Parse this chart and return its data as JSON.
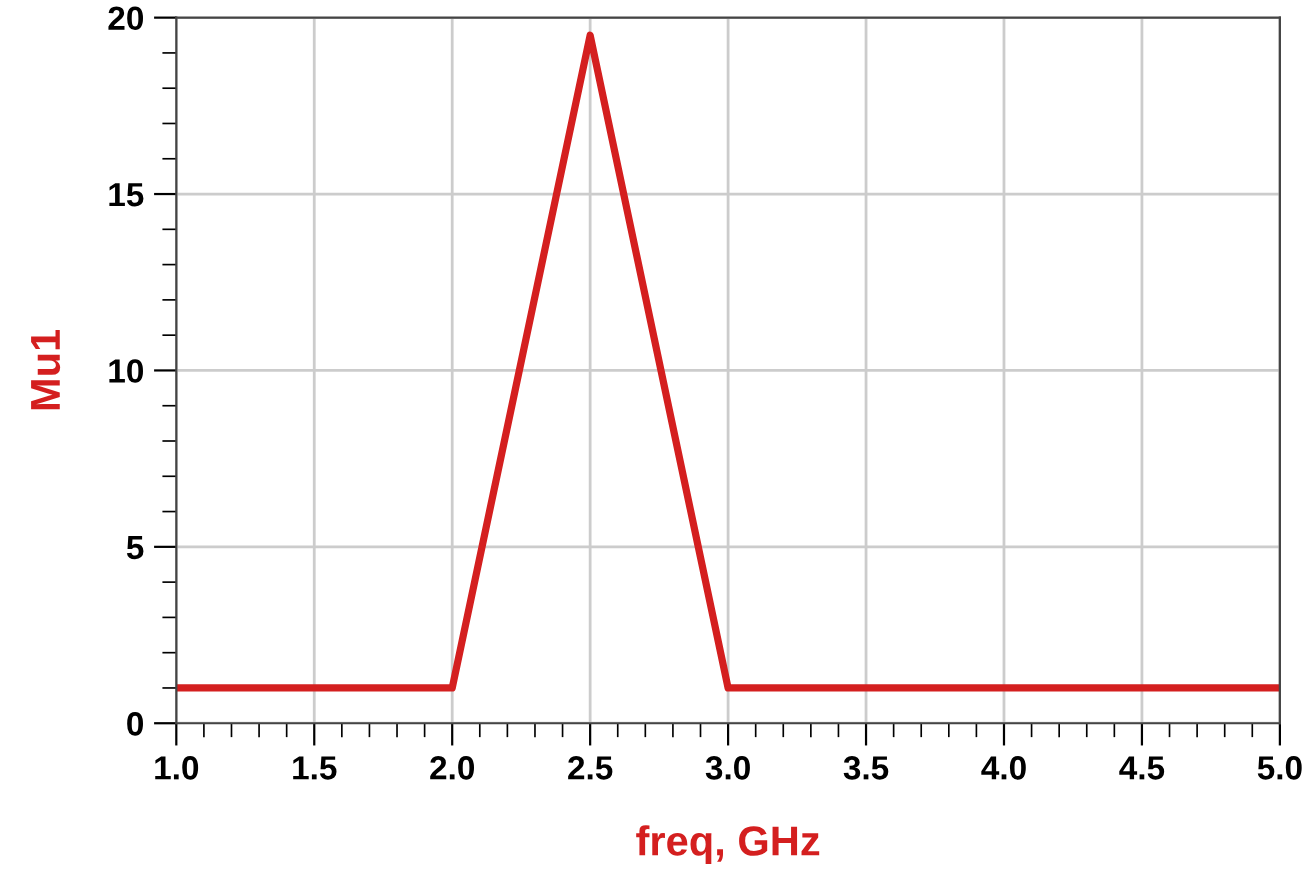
{
  "chart_data": {
    "type": "line",
    "xlabel": "freq, GHz",
    "ylabel": "Mu1",
    "x": [
      1.0,
      2.0,
      2.5,
      3.0,
      5.0
    ],
    "series": [
      {
        "color": "#d41f1f",
        "values": [
          1,
          1,
          19.5,
          1,
          1
        ]
      }
    ],
    "xlim": [
      1.0,
      5.0
    ],
    "ylim": [
      0,
      20
    ],
    "xticks": [
      {
        "value": 1.0,
        "label": "1.0"
      },
      {
        "value": 1.5,
        "label": "1.5"
      },
      {
        "value": 2.0,
        "label": "2.0"
      },
      {
        "value": 2.5,
        "label": "2.5"
      },
      {
        "value": 3.0,
        "label": "3.0"
      },
      {
        "value": 3.5,
        "label": "3.5"
      },
      {
        "value": 4.0,
        "label": "4.0"
      },
      {
        "value": 4.5,
        "label": "4.5"
      },
      {
        "value": 5.0,
        "label": "5.0"
      }
    ],
    "yticks": [
      0,
      5,
      10,
      15,
      20
    ],
    "grid": true,
    "marker": "none",
    "line_style": "solid"
  }
}
